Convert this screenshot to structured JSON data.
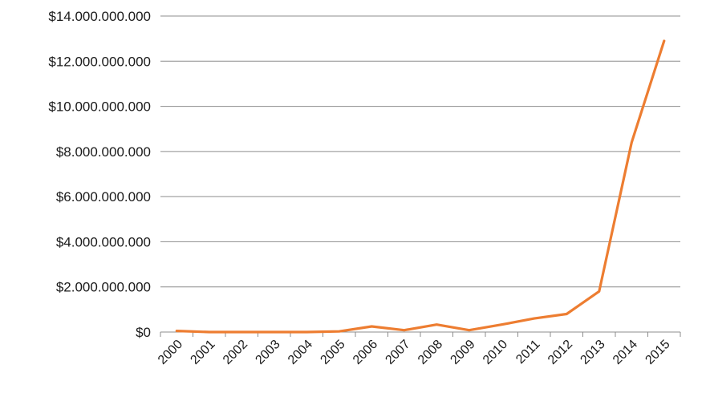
{
  "chart_data": {
    "type": "line",
    "title": "",
    "xlabel": "",
    "ylabel": "",
    "ylim": [
      0,
      14000000000
    ],
    "y_ticks": [
      0,
      2000000000,
      4000000000,
      6000000000,
      8000000000,
      10000000000,
      12000000000,
      14000000000
    ],
    "y_tick_labels": [
      "$0",
      "$2.000.000.000",
      "$4.000.000.000",
      "$6.000.000.000",
      "$8.000.000.000",
      "$10.000.000.000",
      "$12.000.000.000",
      "$14.000.000.000"
    ],
    "categories": [
      "2000",
      "2001",
      "2002",
      "2003",
      "2004",
      "2005",
      "2006",
      "2007",
      "2008",
      "2009",
      "2010",
      "2011",
      "2012",
      "2013",
      "2014",
      "2015"
    ],
    "series": [
      {
        "color": "#ed7d31",
        "values": [
          50000000,
          0,
          0,
          0,
          0,
          30000000,
          250000000,
          80000000,
          330000000,
          80000000,
          330000000,
          600000000,
          800000000,
          1800000000,
          8400000000,
          12900000000
        ]
      }
    ],
    "grid": true,
    "legend": "none"
  }
}
